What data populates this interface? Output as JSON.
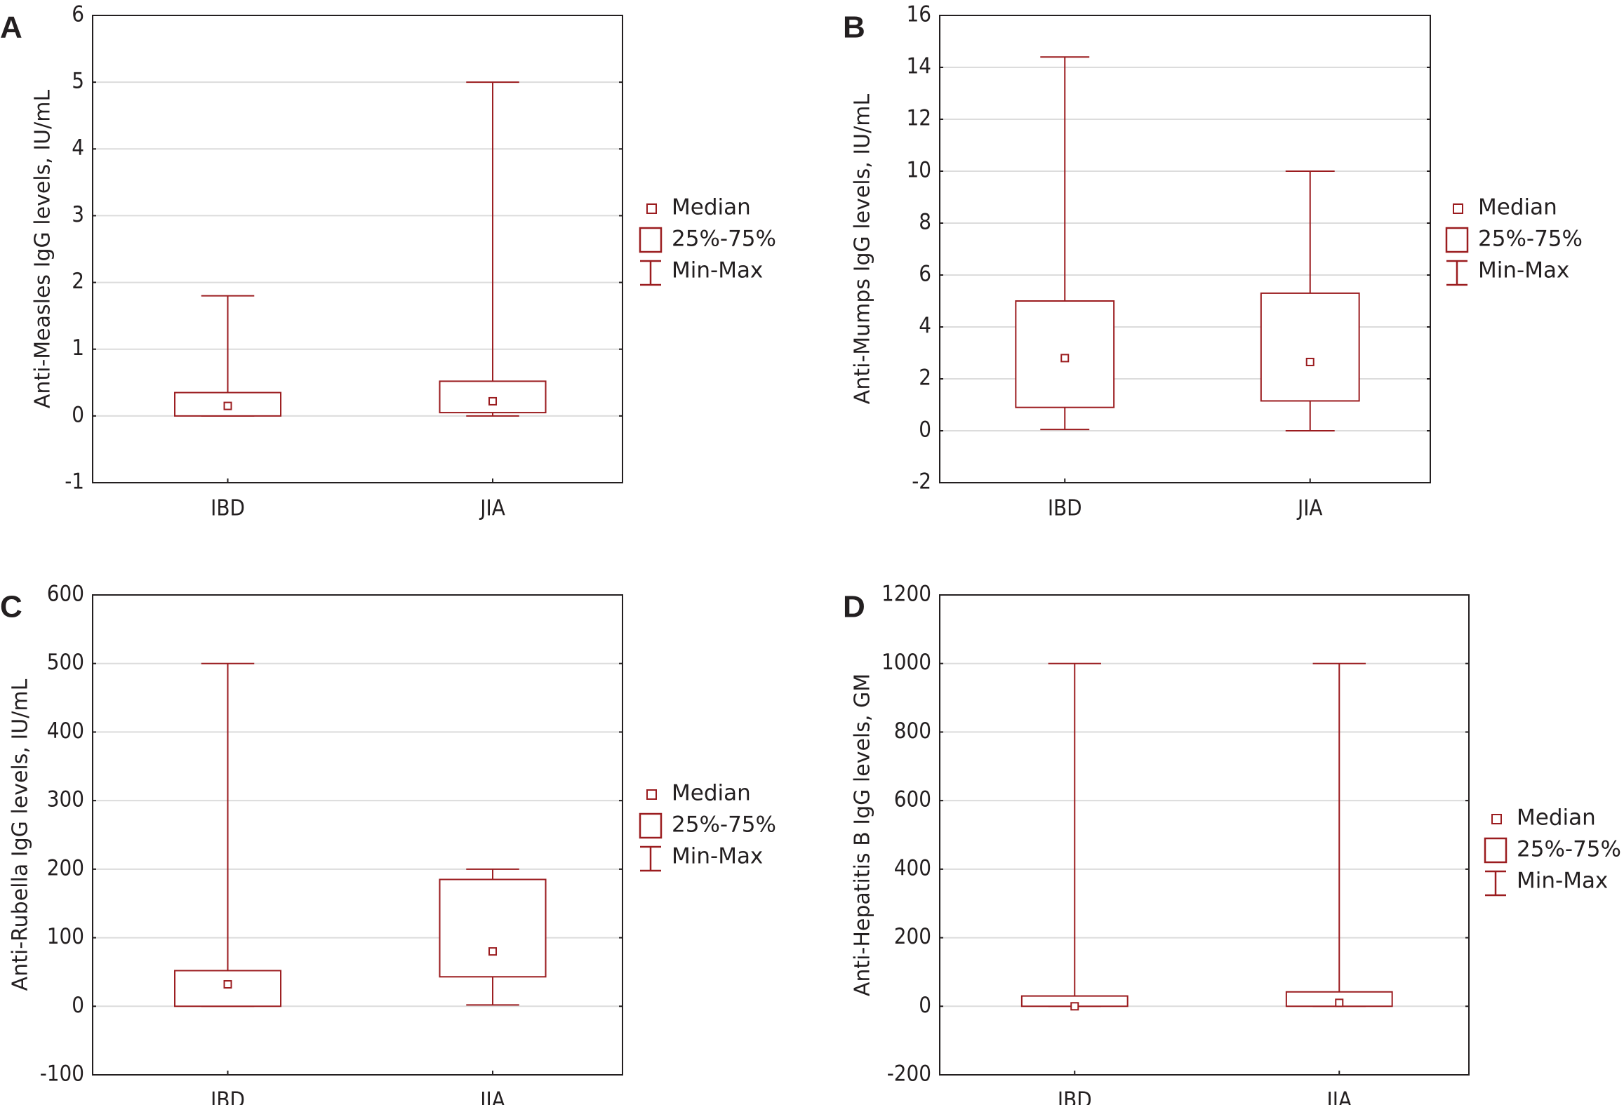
{
  "colors": {
    "box": "#9b1c1f",
    "grid": "#dcdcdc",
    "axis": "#231f20"
  },
  "legend": {
    "median": "Median",
    "box": "25%-75%",
    "whisker": "Min-Max"
  },
  "chart_data": [
    {
      "type": "box",
      "panel": "A",
      "ylabel": "Anti-Measles IgG levels, IU/mL",
      "categories": [
        "IBD",
        "JIA"
      ],
      "ylim": [
        -1,
        6
      ],
      "yticks": [
        "-1",
        "0",
        "1",
        "2",
        "3",
        "4",
        "5",
        "6"
      ],
      "grid": true,
      "legend_position": "right",
      "series": [
        {
          "category": "IBD",
          "min": 0,
          "q1": 0,
          "median": 0.15,
          "q3": 0.35,
          "max": 1.8
        },
        {
          "category": "JIA",
          "min": 0,
          "q1": 0.05,
          "median": 0.22,
          "q3": 0.52,
          "max": 5
        }
      ]
    },
    {
      "type": "box",
      "panel": "B",
      "ylabel": "Anti-Mumps IgG levels, IU/mL",
      "categories": [
        "IBD",
        "JIA"
      ],
      "ylim": [
        -2,
        16
      ],
      "yticks": [
        "-2",
        "0",
        "2",
        "4",
        "6",
        "8",
        "10",
        "12",
        "14",
        "16"
      ],
      "grid": true,
      "legend_position": "right",
      "series": [
        {
          "category": "IBD",
          "min": 0.05,
          "q1": 0.9,
          "median": 2.8,
          "q3": 5.0,
          "max": 14.4
        },
        {
          "category": "JIA",
          "min": 0,
          "q1": 1.15,
          "median": 2.65,
          "q3": 5.3,
          "max": 10
        }
      ]
    },
    {
      "type": "box",
      "panel": "C",
      "ylabel": "Anti-Rubella IgG levels, IU/mL",
      "categories": [
        "IBD",
        "JIA"
      ],
      "ylim": [
        -100,
        600
      ],
      "yticks": [
        "-100",
        "0",
        "100",
        "200",
        "300",
        "400",
        "500",
        "600"
      ],
      "grid": true,
      "legend_position": "right",
      "series": [
        {
          "category": "IBD",
          "min": 0,
          "q1": 0,
          "median": 32,
          "q3": 52,
          "max": 500
        },
        {
          "category": "JIA",
          "min": 2,
          "q1": 43,
          "median": 80,
          "q3": 185,
          "max": 200
        }
      ]
    },
    {
      "type": "box",
      "panel": "D",
      "ylabel": "Anti-Hepatitis B IgG levels, GM",
      "categories": [
        "IBD",
        "JIA"
      ],
      "ylim": [
        -200,
        1200
      ],
      "yticks": [
        "-200",
        "0",
        "200",
        "400",
        "600",
        "800",
        "1000",
        "1200"
      ],
      "grid": true,
      "legend_position": "right",
      "series": [
        {
          "category": "IBD",
          "min": 0,
          "q1": 0,
          "median": 0,
          "q3": 30,
          "max": 1000
        },
        {
          "category": "JIA",
          "min": 0,
          "q1": 0,
          "median": 10,
          "q3": 42,
          "max": 1000
        }
      ]
    }
  ]
}
